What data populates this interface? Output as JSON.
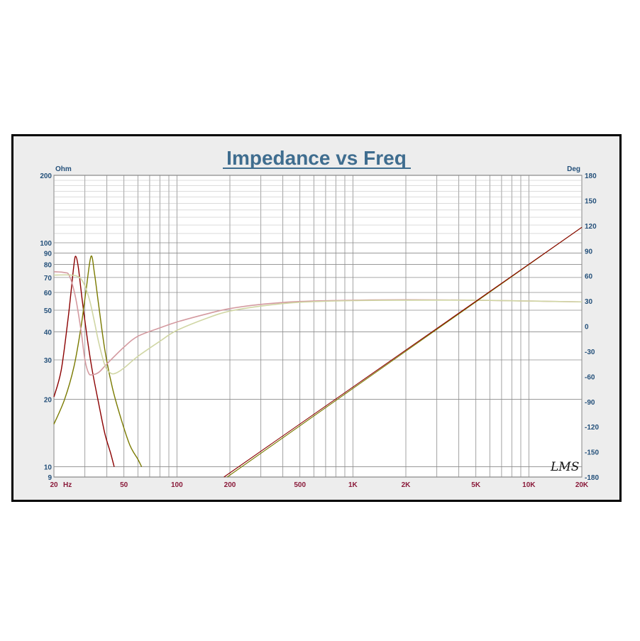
{
  "chart_data": {
    "type": "line",
    "title": "Impedance vs Freq",
    "left_unit": "Ohm",
    "right_unit": "Deg",
    "x_scale": "log",
    "y_scale": "log",
    "xlim": [
      20,
      20000
    ],
    "ylim": [
      9,
      200
    ],
    "y2lim": [
      -180,
      180
    ],
    "grid": true,
    "x_ticks": [
      {
        "value": 20,
        "label": "20"
      },
      {
        "value": 50,
        "label": "50"
      },
      {
        "value": 100,
        "label": "100"
      },
      {
        "value": 200,
        "label": "200"
      },
      {
        "value": 500,
        "label": "500"
      },
      {
        "value": 1000,
        "label": "1K"
      },
      {
        "value": 2000,
        "label": "2K"
      },
      {
        "value": 5000,
        "label": "5K"
      },
      {
        "value": 10000,
        "label": "10K"
      },
      {
        "value": 20000,
        "label": "20K"
      }
    ],
    "x_unit_label": "Hz",
    "y_ticks": [
      {
        "value": 9,
        "label": "9"
      },
      {
        "value": 10,
        "label": "10"
      },
      {
        "value": 20,
        "label": "20"
      },
      {
        "value": 30,
        "label": "30"
      },
      {
        "value": 40,
        "label": "40"
      },
      {
        "value": 50,
        "label": "50"
      },
      {
        "value": 60,
        "label": "60"
      },
      {
        "value": 70,
        "label": "70"
      },
      {
        "value": 80,
        "label": "80"
      },
      {
        "value": 90,
        "label": "90"
      },
      {
        "value": 100,
        "label": "100"
      },
      {
        "value": 200,
        "label": "200"
      }
    ],
    "y2_ticks": [
      {
        "value": 180,
        "label": "180"
      },
      {
        "value": 150,
        "label": "150"
      },
      {
        "value": 120,
        "label": "120"
      },
      {
        "value": 90,
        "label": "90"
      },
      {
        "value": 60,
        "label": "60"
      },
      {
        "value": 30,
        "label": "30"
      },
      {
        "value": 0,
        "label": "0"
      },
      {
        "value": -30,
        "label": "-30"
      },
      {
        "value": -60,
        "label": "-60"
      },
      {
        "value": -90,
        "label": "-90"
      },
      {
        "value": -120,
        "label": "-120"
      },
      {
        "value": -150,
        "label": "-150"
      },
      {
        "value": -180,
        "label": "-180"
      }
    ],
    "series": [
      {
        "axis": "left",
        "color": "#8b0000",
        "width": 1.4,
        "points": [
          [
            20,
            20.5
          ],
          [
            22,
            27
          ],
          [
            24,
            45
          ],
          [
            25,
            60
          ],
          [
            26,
            80
          ],
          [
            26.6,
            87
          ],
          [
            27.5,
            78
          ],
          [
            29,
            55
          ],
          [
            31,
            37
          ],
          [
            33,
            27
          ],
          [
            36,
            19
          ],
          [
            39,
            14
          ],
          [
            42,
            11.5
          ],
          [
            44,
            10
          ]
        ]
      },
      {
        "axis": "left",
        "color": "#7a7a00",
        "width": 1.4,
        "points": [
          [
            20,
            15.5
          ],
          [
            23,
            20
          ],
          [
            26,
            28
          ],
          [
            28.5,
            42
          ],
          [
            30.5,
            62
          ],
          [
            32.5,
            87
          ],
          [
            34,
            73
          ],
          [
            36,
            52
          ],
          [
            39,
            33
          ],
          [
            43,
            22.5
          ],
          [
            48,
            16.5
          ],
          [
            54,
            12.5
          ],
          [
            60,
            10.8
          ],
          [
            63,
            10
          ]
        ]
      },
      {
        "axis": "right",
        "color": "#d49aa0",
        "width": 1.6,
        "points": [
          [
            20,
            65
          ],
          [
            23,
            64
          ],
          [
            24.5,
            60
          ],
          [
            26.5,
            35
          ],
          [
            28.5,
            -5
          ],
          [
            30,
            -40
          ],
          [
            31.5,
            -56
          ],
          [
            33,
            -58
          ],
          [
            36,
            -55
          ],
          [
            40,
            -45
          ],
          [
            50,
            -25
          ],
          [
            60,
            -12
          ],
          [
            80,
            -2
          ],
          [
            100,
            5
          ],
          [
            150,
            15
          ],
          [
            200,
            21
          ],
          [
            300,
            26
          ],
          [
            500,
            29.5
          ],
          [
            1000,
            31
          ],
          [
            2000,
            31.5
          ],
          [
            5000,
            31
          ],
          [
            10000,
            30
          ],
          [
            20000,
            29
          ]
        ]
      },
      {
        "axis": "right",
        "color": "#d0d6a4",
        "width": 1.6,
        "points": [
          [
            20,
            61
          ],
          [
            25,
            61
          ],
          [
            28,
            58
          ],
          [
            30,
            48
          ],
          [
            32,
            30
          ],
          [
            34,
            5
          ],
          [
            36,
            -20
          ],
          [
            39,
            -47
          ],
          [
            42,
            -56
          ],
          [
            45,
            -56
          ],
          [
            50,
            -50
          ],
          [
            60,
            -36
          ],
          [
            80,
            -18
          ],
          [
            100,
            -5
          ],
          [
            150,
            10
          ],
          [
            200,
            18
          ],
          [
            300,
            24
          ],
          [
            500,
            28.5
          ],
          [
            1000,
            30.5
          ],
          [
            2000,
            31
          ],
          [
            5000,
            31
          ],
          [
            10000,
            30
          ],
          [
            20000,
            29
          ]
        ]
      },
      {
        "axis": "right",
        "color": "#7a7a00",
        "width": 1.1,
        "points": [
          [
            193,
            -180
          ],
          [
            20000,
            118
          ]
        ]
      },
      {
        "axis": "right",
        "color": "#8b0000",
        "width": 1.1,
        "points": [
          [
            185,
            -180
          ],
          [
            20000,
            118
          ]
        ]
      }
    ]
  },
  "logo": "LMS"
}
